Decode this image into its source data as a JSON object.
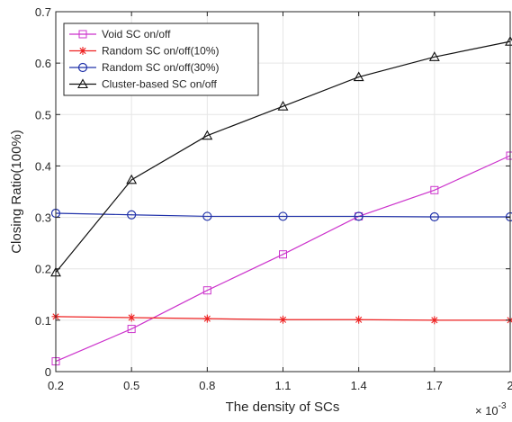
{
  "chart_data": {
    "type": "line",
    "xlabel": "The density of SCs",
    "ylabel": "Closing Ratio(100%)",
    "x_multiplier": "× 10",
    "x_multiplier_exp": "-3",
    "x": [
      0.2,
      0.5,
      0.8,
      1.1,
      1.4,
      1.7,
      2
    ],
    "x_tick_labels": [
      "0.2",
      "0.5",
      "0.8",
      "1.1",
      "1.4",
      "1.7",
      "2"
    ],
    "xlim": [
      0.2,
      2
    ],
    "ylim": [
      0,
      0.7
    ],
    "y_ticks": [
      0,
      0.1,
      0.2,
      0.3,
      0.4,
      0.5,
      0.6,
      0.7
    ],
    "y_tick_labels": [
      "0",
      "0.1",
      "0.2",
      "0.3",
      "0.4",
      "0.5",
      "0.6",
      "0.7"
    ],
    "grid": true,
    "legend_position": "top-left",
    "series": [
      {
        "name": "Void SC on/off",
        "color": "#cc33cc",
        "marker": "square",
        "values": [
          0.02,
          0.083,
          0.158,
          0.228,
          0.302,
          0.353,
          0.42
        ]
      },
      {
        "name": "Random SC on/off(10%)",
        "color": "#ee2222",
        "marker": "asterisk",
        "values": [
          0.107,
          0.105,
          0.103,
          0.101,
          0.101,
          0.1,
          0.1
        ]
      },
      {
        "name": "Random SC on/off(30%)",
        "color": "#2233aa",
        "marker": "circle",
        "values": [
          0.308,
          0.305,
          0.302,
          0.302,
          0.302,
          0.301,
          0.301
        ]
      },
      {
        "name": "Cluster-based SC on/off",
        "color": "#111111",
        "marker": "triangle",
        "values": [
          0.193,
          0.373,
          0.459,
          0.516,
          0.573,
          0.612,
          0.642
        ]
      }
    ]
  }
}
